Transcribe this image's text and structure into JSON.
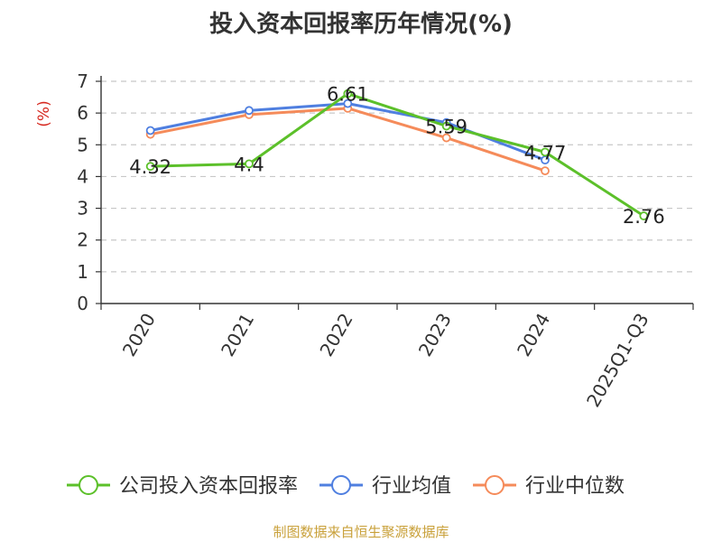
{
  "chart_data": {
    "type": "line",
    "title": "投入资本回报率历年情况(%)",
    "ylabel": "(%)",
    "xlabel": "",
    "categories": [
      "2020",
      "2021",
      "2022",
      "2023",
      "2024",
      "2025Q1-Q3"
    ],
    "ylim": [
      0,
      7
    ],
    "yticks": [
      0,
      1,
      2,
      3,
      4,
      5,
      6,
      7
    ],
    "grid": true,
    "legend_position": "bottom",
    "series": [
      {
        "name": "公司投入资本回报率",
        "color": "#5cc02a",
        "values": [
          4.32,
          4.4,
          6.61,
          5.59,
          4.77,
          2.76
        ],
        "labels": [
          "4.32",
          "4.4",
          "6.61",
          "5.59",
          "4.77",
          "2.76"
        ]
      },
      {
        "name": "行业均值",
        "color": "#4f7fe0",
        "values": [
          5.45,
          6.08,
          6.3,
          5.7,
          4.52,
          null
        ]
      },
      {
        "name": "行业中位数",
        "color": "#f58b5a",
        "values": [
          5.33,
          5.95,
          6.15,
          5.22,
          4.18,
          null
        ]
      }
    ]
  },
  "source": "制图数据来自恒生聚源数据库"
}
